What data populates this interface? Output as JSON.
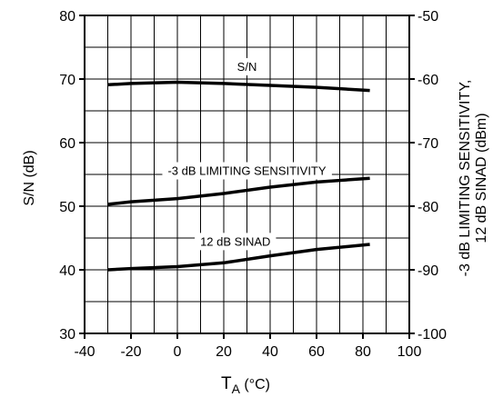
{
  "chart_data": {
    "type": "line",
    "xlabel_main": "T",
    "xlabel_sub": "A",
    "xlabel_unit": " (°C)",
    "ylabel_left": "S/N (dB)",
    "ylabel_right_line1": "-3 dB LIMITING SENSITIVITY,",
    "ylabel_right_line2": "12 dB SINAD (dBm)",
    "xlim": [
      -40,
      100
    ],
    "ylim_left": [
      30,
      80
    ],
    "ylim_right": [
      -100,
      -50
    ],
    "x_ticks": [
      -40,
      -20,
      0,
      20,
      40,
      60,
      80,
      100
    ],
    "x_tick_labels": [
      "-40",
      "-20",
      "0",
      "20",
      "40",
      "60",
      "80",
      "100"
    ],
    "y_left_ticks": [
      30,
      40,
      50,
      60,
      70,
      80
    ],
    "y_left_tick_labels": [
      "30",
      "40",
      "50",
      "60",
      "70",
      "80"
    ],
    "y_right_ticks": [
      -100,
      -90,
      -80,
      -70,
      -60,
      -50
    ],
    "y_right_tick_labels": [
      "-100",
      "-90",
      "-80",
      "-70",
      "-60",
      "-50"
    ],
    "grid": true,
    "series": [
      {
        "name": "S/N",
        "axis": "left",
        "x": [
          -30,
          -20,
          0,
          20,
          40,
          60,
          83
        ],
        "values": [
          69.1,
          69.3,
          69.5,
          69.3,
          69.0,
          68.7,
          68.2
        ]
      },
      {
        "name": "-3 dB LIMITING SENSITIVITY",
        "axis": "right",
        "x": [
          -30,
          -20,
          0,
          20,
          40,
          60,
          83
        ],
        "values": [
          -79.7,
          -79.3,
          -78.8,
          -78.0,
          -77.0,
          -76.2,
          -75.6
        ]
      },
      {
        "name": "12 dB SINAD",
        "axis": "right",
        "x": [
          -30,
          -20,
          0,
          20,
          40,
          60,
          83
        ],
        "values": [
          -90.0,
          -89.8,
          -89.5,
          -88.9,
          -87.8,
          -86.8,
          -86.0
        ]
      }
    ]
  }
}
